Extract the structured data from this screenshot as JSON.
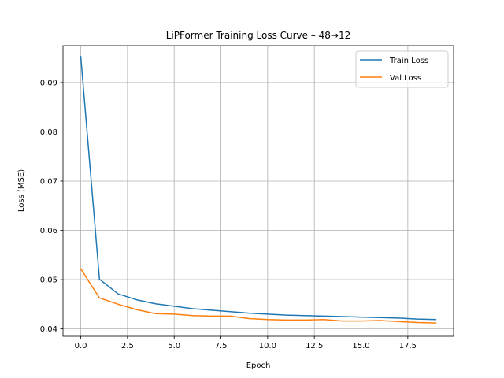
{
  "chart_data": {
    "type": "line",
    "title": "LiPFormer Training Loss Curve – 48→12",
    "xlabel": "Epoch",
    "ylabel": "Loss (MSE)",
    "xlim": [
      -0.95,
      19.95
    ],
    "ylim": [
      0.0385,
      0.0975
    ],
    "xticks": [
      0,
      2.5,
      5,
      7.5,
      10,
      12.5,
      15,
      17.5
    ],
    "xtick_labels": [
      "0.0",
      "2.5",
      "5.0",
      "7.5",
      "10.0",
      "12.5",
      "15.0",
      "17.5"
    ],
    "yticks": [
      0.04,
      0.05,
      0.06,
      0.07,
      0.08,
      0.09
    ],
    "ytick_labels": [
      "0.04",
      "0.05",
      "0.06",
      "0.07",
      "0.08",
      "0.09"
    ],
    "grid": true,
    "legend_position": "top-right",
    "x": [
      0,
      1,
      2,
      3,
      4,
      5,
      6,
      7,
      8,
      9,
      10,
      11,
      12,
      13,
      14,
      15,
      16,
      17,
      18,
      19
    ],
    "series": [
      {
        "name": "Train Loss",
        "color": "#1f77b4",
        "values": [
          0.0953,
          0.0501,
          0.0471,
          0.0459,
          0.0451,
          0.0446,
          0.0441,
          0.0438,
          0.0435,
          0.0432,
          0.043,
          0.0428,
          0.0427,
          0.0426,
          0.0425,
          0.0424,
          0.0423,
          0.0422,
          0.042,
          0.0419
        ]
      },
      {
        "name": "Val Loss",
        "color": "#ff7f0e",
        "values": [
          0.0522,
          0.0463,
          0.045,
          0.0439,
          0.0431,
          0.043,
          0.0427,
          0.0426,
          0.0426,
          0.0421,
          0.0419,
          0.0418,
          0.0418,
          0.0419,
          0.0416,
          0.0416,
          0.0417,
          0.0415,
          0.0413,
          0.0412
        ]
      }
    ]
  }
}
